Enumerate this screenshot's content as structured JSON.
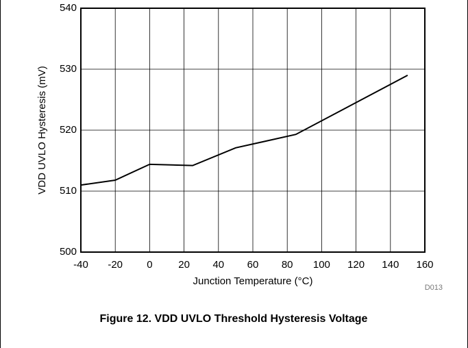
{
  "chart_data": {
    "type": "line",
    "title": "Figure 12. VDD UVLO Threshold Hysteresis Voltage",
    "x_label": "Junction Temperature (°C)",
    "y_label": "VDD UVLO Hysteresis (mV)",
    "annotation": "D013",
    "x": [
      -40,
      -20,
      0,
      25,
      50,
      85,
      150
    ],
    "series": [
      {
        "name": "Hysteresis",
        "color": "#000000",
        "values": [
          511.0,
          511.8,
          514.4,
          514.2,
          517.1,
          519.3,
          529.0
        ]
      }
    ],
    "xlim": [
      -40,
      160
    ],
    "xticks": [
      -40,
      -20,
      0,
      20,
      40,
      60,
      80,
      100,
      120,
      140,
      160
    ],
    "ylim": [
      500,
      540
    ],
    "yticks": [
      500,
      510,
      520,
      530,
      540
    ],
    "grid": true
  }
}
